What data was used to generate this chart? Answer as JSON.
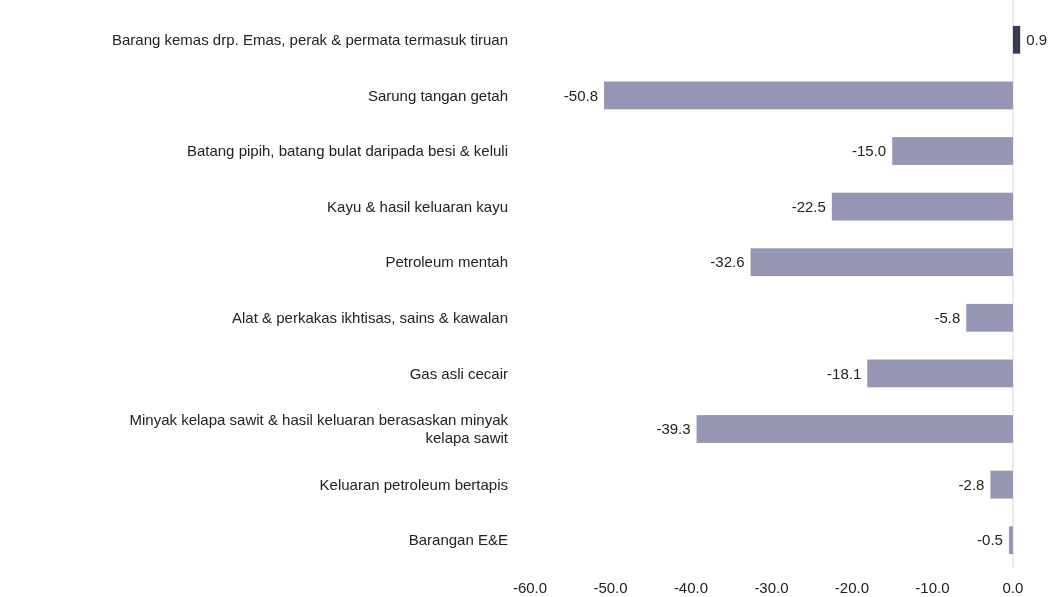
{
  "chart_data": {
    "type": "bar",
    "orientation": "horizontal",
    "categories": [
      "Barang kemas drp. Emas, perak & permata termasuk tiruan",
      "Sarung tangan getah",
      "Batang pipih, batang bulat daripada besi & keluli",
      "Kayu & hasil keluaran kayu",
      "Petroleum mentah",
      "Alat & perkakas ikhtisas, sains & kawalan",
      "Gas asli cecair",
      "Minyak kelapa sawit & hasil keluaran berasaskan minyak kelapa sawit",
      "Keluaran petroleum bertapis",
      "Barangan E&E"
    ],
    "values": [
      0.9,
      -50.8,
      -15.0,
      -22.5,
      -32.6,
      -5.8,
      -18.1,
      -39.3,
      -2.8,
      -0.5
    ],
    "value_labels": [
      "0.9",
      "-50.8",
      "-15.0",
      "-22.5",
      "-32.6",
      "-5.8",
      "-18.1",
      "-39.3",
      "-2.8",
      "-0.5"
    ],
    "colors": [
      "#363a52",
      "#9596b4",
      "#9596b4",
      "#9596b4",
      "#9596b4",
      "#9596b4",
      "#9596b4",
      "#9596b4",
      "#9596b4",
      "#9596b4"
    ],
    "xlim": [
      -60,
      0.9
    ],
    "xticks": [
      {
        "value": -60,
        "label": "-60.0"
      },
      {
        "value": -50,
        "label": "-50.0"
      },
      {
        "value": -40,
        "label": "-40.0"
      },
      {
        "value": -30,
        "label": "-30.0"
      },
      {
        "value": -20,
        "label": "-20.0"
      },
      {
        "value": -10,
        "label": "-10.0"
      },
      {
        "value": 0,
        "label": "0.0"
      }
    ],
    "ref_lines": [
      {
        "axis": "x",
        "value": 0,
        "color": "#d9d9d9"
      }
    ]
  }
}
